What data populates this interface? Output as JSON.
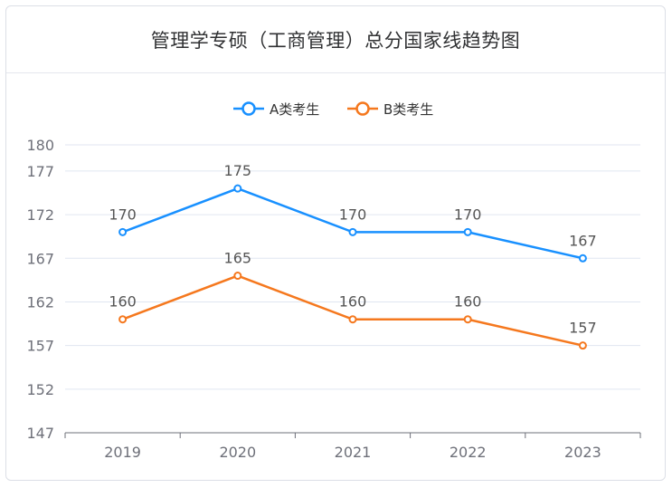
{
  "title": "管理学专硕（工商管理）总分国家线趋势图",
  "colors": {
    "series_a": "#1890ff",
    "series_b": "#f5781e",
    "grid": "#e0e6f1",
    "axis": "#6e7079"
  },
  "chart_data": {
    "type": "line",
    "title": "管理学专硕（工商管理）总分国家线趋势图",
    "categories": [
      "2019",
      "2020",
      "2021",
      "2022",
      "2023"
    ],
    "series": [
      {
        "name": "A类考生",
        "values": [
          170,
          175,
          170,
          170,
          167
        ]
      },
      {
        "name": "B类考生",
        "values": [
          160,
          165,
          160,
          160,
          157
        ]
      }
    ],
    "y_ticks": [
      147,
      152,
      157,
      162,
      167,
      172,
      177,
      180
    ],
    "ylim": [
      147,
      180
    ],
    "xlabel": "",
    "ylabel": "",
    "grid": true,
    "legend_position": "top-center",
    "data_labels": true
  }
}
